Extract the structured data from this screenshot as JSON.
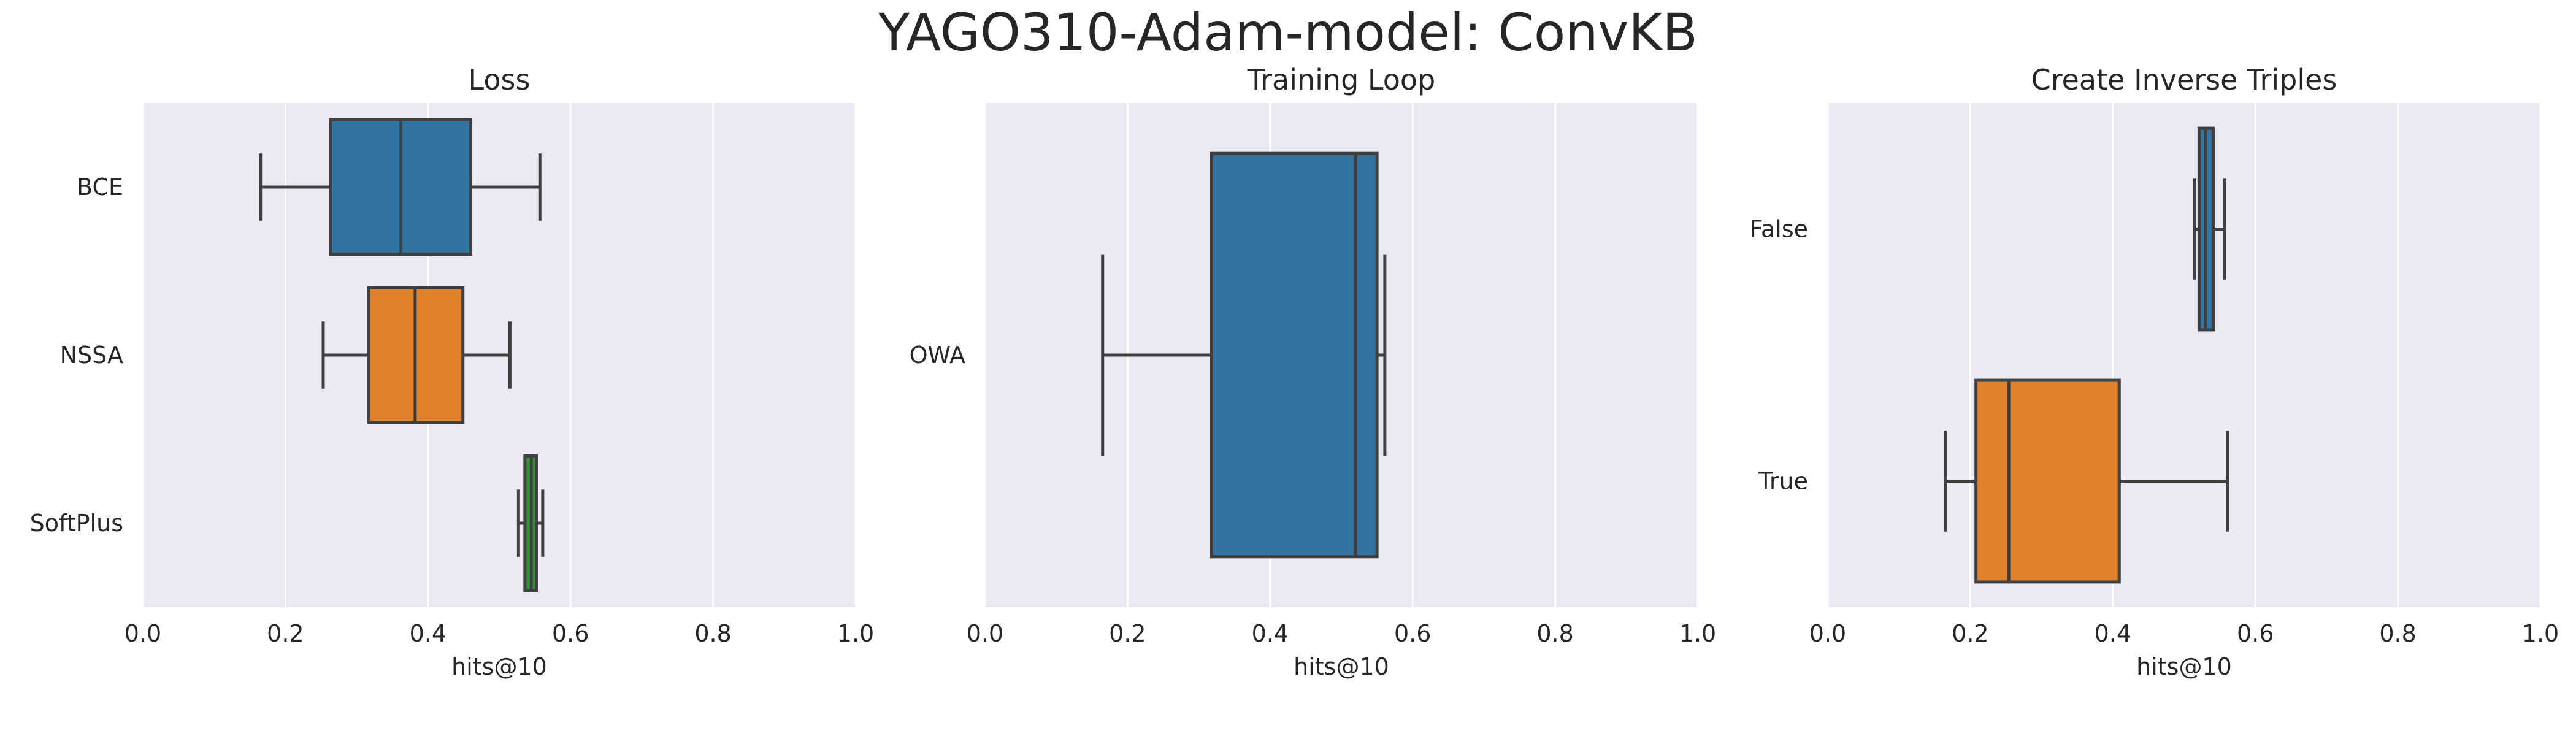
{
  "suptitle": "YAGO310-Adam-model: ConvKB",
  "colors": {
    "plot_bg": "#eaeaf2",
    "grid": "#ffffff",
    "edge": "#3f3f3f",
    "text": "#262626"
  },
  "chart_data": [
    {
      "type": "box",
      "orientation": "horizontal",
      "title": "Loss",
      "xlabel": "hits@10",
      "xlim": [
        0.0,
        1.0
      ],
      "xticks": [
        "0.0",
        "0.2",
        "0.4",
        "0.6",
        "0.8",
        "1.0"
      ],
      "grid": true,
      "categories": [
        "BCE",
        "NSSA",
        "SoftPlus"
      ],
      "boxes": [
        {
          "label": "BCE",
          "whisker_low": 0.165,
          "q1": 0.263,
          "median": 0.362,
          "q3": 0.46,
          "whisker_high": 0.557,
          "color": "#3274a1"
        },
        {
          "label": "NSSA",
          "whisker_low": 0.253,
          "q1": 0.317,
          "median": 0.382,
          "q3": 0.449,
          "whisker_high": 0.515,
          "color": "#e1812c"
        },
        {
          "label": "SoftPlus",
          "whisker_low": 0.527,
          "q1": 0.536,
          "median": 0.545,
          "q3": 0.552,
          "whisker_high": 0.561,
          "color": "#3a923a"
        }
      ]
    },
    {
      "type": "box",
      "orientation": "horizontal",
      "title": "Training Loop",
      "xlabel": "hits@10",
      "xlim": [
        0.0,
        1.0
      ],
      "xticks": [
        "0.0",
        "0.2",
        "0.4",
        "0.6",
        "0.8",
        "1.0"
      ],
      "grid": true,
      "categories": [
        "OWA"
      ],
      "boxes": [
        {
          "label": "OWA",
          "whisker_low": 0.165,
          "q1": 0.318,
          "median": 0.52,
          "q3": 0.55,
          "whisker_high": 0.561,
          "color": "#3274a1"
        }
      ]
    },
    {
      "type": "box",
      "orientation": "horizontal",
      "title": "Create Inverse Triples",
      "xlabel": "hits@10",
      "xlim": [
        0.0,
        1.0
      ],
      "xticks": [
        "0.0",
        "0.2",
        "0.4",
        "0.6",
        "0.8",
        "1.0"
      ],
      "grid": true,
      "categories": [
        "False",
        "True"
      ],
      "boxes": [
        {
          "label": "False",
          "whisker_low": 0.515,
          "q1": 0.521,
          "median": 0.53,
          "q3": 0.541,
          "whisker_high": 0.557,
          "color": "#3274a1"
        },
        {
          "label": "True",
          "whisker_low": 0.165,
          "q1": 0.208,
          "median": 0.254,
          "q3": 0.409,
          "whisker_high": 0.561,
          "color": "#e1812c"
        }
      ]
    }
  ]
}
